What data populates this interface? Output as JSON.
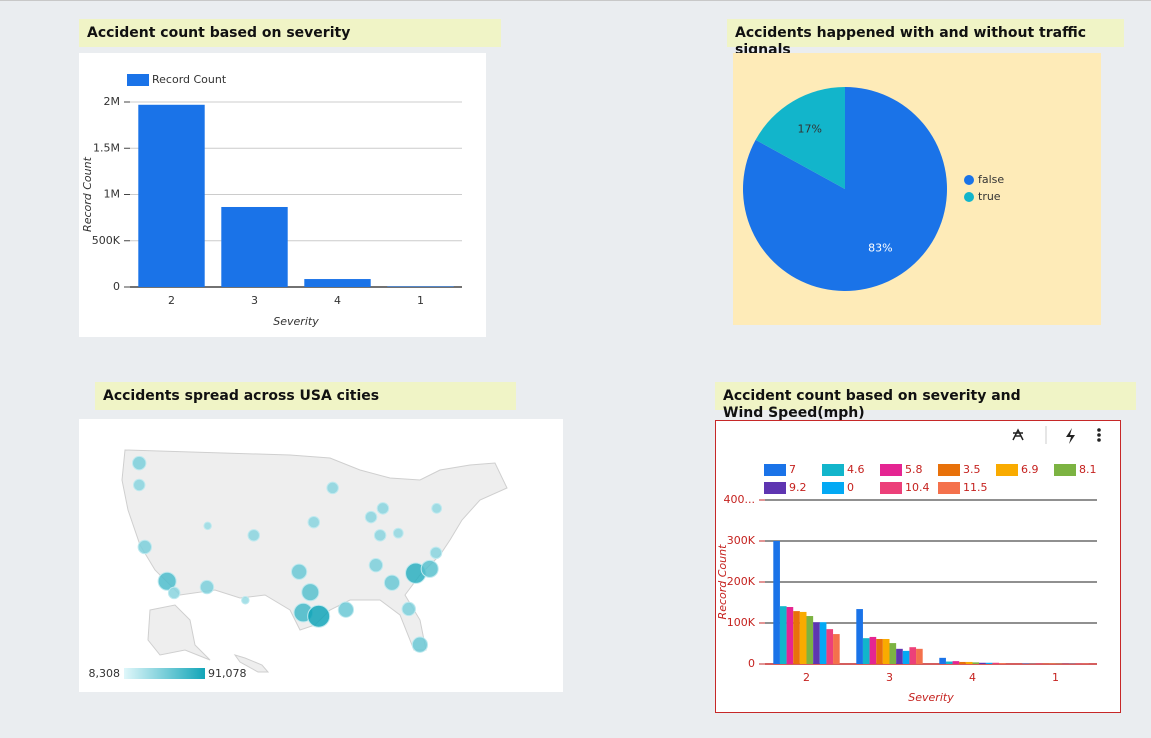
{
  "chart_data": [
    {
      "type": "bar",
      "title": "Accident count based on severity",
      "x_label": "Severity",
      "y_label": "Record Count",
      "categories": [
        "2",
        "3",
        "4",
        "1"
      ],
      "series": [
        {
          "name": "Record Count",
          "color": "#1a73e8",
          "values": [
            1970000,
            865000,
            86000,
            6000
          ]
        }
      ],
      "ylim": [
        0,
        2000000
      ],
      "yticks": [
        0,
        {
          "value": 500000,
          "label": "500K"
        },
        {
          "value": 1000000,
          "label": "1M"
        },
        {
          "value": 1500000,
          "label": "1.5M"
        },
        {
          "value": 2000000,
          "label": "2M"
        }
      ],
      "grid": true
    },
    {
      "type": "pie",
      "title": "Accidents happened with and without traffic signals",
      "categories": [
        "false",
        "true"
      ],
      "values": [
        83,
        17
      ],
      "value_labels": [
        "83%",
        "17%"
      ],
      "colors": [
        "#1a73e8",
        "#12b5cb"
      ]
    },
    {
      "type": "bubble_map",
      "title": "Accidents spread across USA cities",
      "xlim": [
        -125,
        -67
      ],
      "ylim": [
        25,
        49
      ],
      "x": [
        -120.1,
        -120.1,
        -119.3,
        -116.1,
        -115.1,
        -110.4,
        -103.7,
        -110.3,
        -104.9,
        -92.4,
        -95.1,
        -97.2,
        -95.6,
        -96.6,
        -94.4,
        -90.5,
        -86.2,
        -83.9,
        -80.5,
        -78.5,
        -77.6,
        -81.5,
        -79.9,
        -85.6,
        -85.2,
        -86.9,
        -77.5,
        -83.0
      ],
      "y": [
        47.2,
        44.2,
        35.7,
        31.0,
        29.4,
        30.2,
        37.3,
        38.6,
        28.4,
        43.8,
        39.1,
        32.3,
        29.5,
        26.7,
        26.2,
        27.1,
        33.2,
        30.8,
        32.1,
        32.7,
        34.9,
        27.2,
        22.3,
        37.3,
        41.0,
        39.8,
        41.0,
        37.6
      ],
      "values": [
        26000,
        18000,
        26000,
        55000,
        18000,
        26000,
        18000,
        9000,
        9000,
        18000,
        18000,
        36000,
        48000,
        60000,
        91078,
        36000,
        26000,
        36000,
        75000,
        48000,
        18000,
        26000,
        36000,
        18000,
        18000,
        18000,
        13000,
        13000
      ],
      "legend_min": {
        "value": 8308,
        "label": "8,308"
      },
      "legend_max": {
        "value": 91078,
        "label": "91,078"
      },
      "colors": [
        "#e0f7fa",
        "#12a5b8"
      ]
    },
    {
      "type": "bar",
      "title": "Accident count based on severity and Wind Speed(mph)",
      "x_label": "Severity",
      "y_label": "Record Count",
      "categories": [
        "2",
        "3",
        "4",
        "1"
      ],
      "series": [
        {
          "name": "7",
          "color": "#1a73e8",
          "values": [
            300000,
            134000,
            15000,
            1000
          ]
        },
        {
          "name": "4.6",
          "color": "#12b5cb",
          "values": [
            141000,
            63000,
            6000,
            500
          ]
        },
        {
          "name": "5.8",
          "color": "#e52592",
          "values": [
            139000,
            66000,
            7000,
            500
          ]
        },
        {
          "name": "3.5",
          "color": "#e8710a",
          "values": [
            129000,
            61000,
            5000,
            500
          ]
        },
        {
          "name": "6.9",
          "color": "#f9ab00",
          "values": [
            127000,
            61000,
            5000,
            500
          ]
        },
        {
          "name": "8.1",
          "color": "#7cb342",
          "values": [
            117000,
            51000,
            4000,
            500
          ]
        },
        {
          "name": "9.2",
          "color": "#5e35b1",
          "values": [
            102000,
            37000,
            3000,
            500
          ]
        },
        {
          "name": "0",
          "color": "#03a9f4",
          "values": [
            102000,
            32000,
            3000,
            500
          ]
        },
        {
          "name": "10.4",
          "color": "#ec407a",
          "values": [
            85000,
            41000,
            3000,
            500
          ]
        },
        {
          "name": "11.5",
          "color": "#f4714c",
          "values": [
            73000,
            37000,
            2000,
            500
          ]
        }
      ],
      "ylim": [
        0,
        400000
      ],
      "yticks": [
        0,
        {
          "value": 100000,
          "label": "100K"
        },
        {
          "value": 200000,
          "label": "200K"
        },
        {
          "value": 300000,
          "label": "300K"
        },
        {
          "value": 400000,
          "label": "400..."
        }
      ],
      "grid": true
    }
  ]
}
